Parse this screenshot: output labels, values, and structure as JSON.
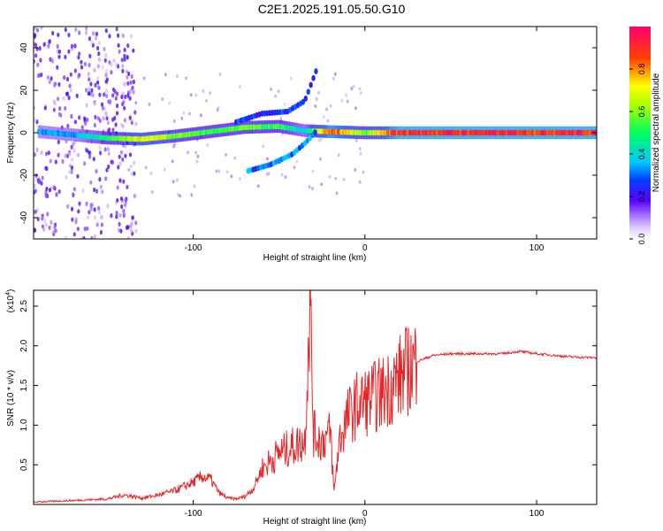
{
  "title": "C2E1.2025.191.05.50.G10",
  "chart_data": [
    {
      "type": "heatmap",
      "xlabel": "Height of straight line (km)",
      "ylabel": "Frequency (Hz)",
      "xlim": [
        -193,
        135
      ],
      "ylim": [
        -50,
        50
      ],
      "x_ticks": [
        -100,
        0,
        100
      ],
      "y_ticks": [
        -40,
        -20,
        0,
        20,
        40
      ],
      "colorbar": {
        "label": "Normalized spectral amplitude",
        "range": [
          0.0,
          1.0
        ],
        "ticks": [
          0.0,
          0.2,
          0.4,
          0.6,
          0.8
        ]
      },
      "ridge": [
        {
          "x": -190,
          "freq": 0.5,
          "amp": 0.35
        },
        {
          "x": -170,
          "freq": -1.0,
          "amp": 0.35
        },
        {
          "x": -150,
          "freq": -2.5,
          "amp": 0.5
        },
        {
          "x": -130,
          "freq": -3.0,
          "amp": 0.75
        },
        {
          "x": -110,
          "freq": -1.5,
          "amp": 0.6
        },
        {
          "x": -90,
          "freq": 0.5,
          "amp": 0.55
        },
        {
          "x": -70,
          "freq": 2.5,
          "amp": 0.6
        },
        {
          "x": -50,
          "freq": 3.0,
          "amp": 0.55
        },
        {
          "x": -35,
          "freq": 1.0,
          "amp": 0.4
        },
        {
          "x": -20,
          "freq": 0.5,
          "amp": 0.9
        },
        {
          "x": 0,
          "freq": 0.0,
          "amp": 0.6
        },
        {
          "x": 20,
          "freq": 0.0,
          "amp": 0.95
        },
        {
          "x": 135,
          "freq": 0.0,
          "amp": 0.95
        }
      ],
      "branches": [
        {
          "x": [
            -75,
            -60,
            -45,
            -35,
            -28
          ],
          "freq": [
            5,
            9,
            10,
            15,
            30
          ],
          "amp": 0.25
        },
        {
          "x": [
            -68,
            -55,
            -42,
            -35,
            -28
          ],
          "freq": [
            -18,
            -15,
            -10,
            -5,
            1
          ],
          "amp": 0.3
        }
      ]
    },
    {
      "type": "line",
      "xlabel": "Height of straight line (km)",
      "ylabel": "SNR (10 * v/v)",
      "y_multiplier": "(x10",
      "y_multiplier_exp": "4",
      "y_multiplier_close": ")",
      "xlim": [
        -193,
        135
      ],
      "ylim": [
        0,
        2.7
      ],
      "x_ticks": [
        -100,
        0,
        100
      ],
      "y_ticks": [
        0.5,
        1.0,
        1.5,
        2.0,
        2.5
      ],
      "color": "#e8262a",
      "series": [
        {
          "x": [
            -193,
            -170,
            -150,
            -140,
            -130,
            -120,
            -110,
            -100,
            -95,
            -90,
            -85,
            -80,
            -75,
            -70,
            -65,
            -60,
            -55,
            -50,
            -45,
            -40,
            -35,
            -32,
            -30,
            -25,
            -20,
            -18,
            -15,
            -10,
            -5,
            0,
            5,
            10,
            15,
            20,
            25,
            30,
            40,
            50,
            60,
            70,
            80,
            90,
            100,
            110,
            120,
            135
          ],
          "y": [
            0.03,
            0.05,
            0.07,
            0.12,
            0.08,
            0.12,
            0.18,
            0.28,
            0.35,
            0.32,
            0.15,
            0.08,
            0.07,
            0.1,
            0.2,
            0.45,
            0.55,
            0.65,
            0.7,
            0.75,
            0.8,
            2.65,
            0.9,
            0.8,
            0.9,
            0.15,
            0.8,
            1.1,
            1.25,
            1.3,
            1.35,
            1.4,
            1.5,
            1.6,
            1.7,
            1.8,
            1.88,
            1.9,
            1.9,
            1.9,
            1.9,
            1.93,
            1.9,
            1.88,
            1.86,
            1.85
          ]
        }
      ]
    }
  ]
}
